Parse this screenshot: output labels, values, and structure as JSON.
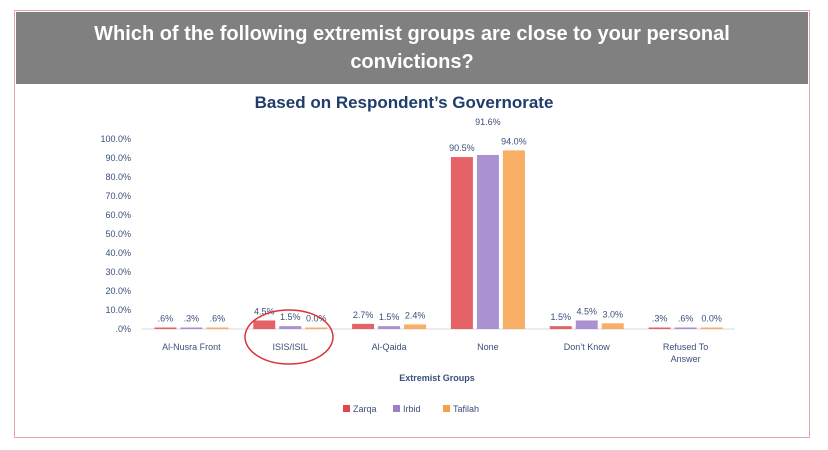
{
  "header": {
    "line1": "Which of the following extremist groups are close to your personal",
    "line2": "convictions?"
  },
  "chart_data": {
    "type": "bar",
    "title": "Based on Respondent’s Governorate",
    "xlabel": "Extremist Groups",
    "ylabel": "",
    "ylim": [
      0,
      100
    ],
    "yticks": [
      "100.0%",
      "90.0%",
      "80.0%",
      "70.0%",
      "60.0%",
      "50.0%",
      "40.0%",
      "30.0%",
      "20.0%",
      "10.0%",
      ".0%"
    ],
    "categories": [
      [
        "Al-Nusra Front"
      ],
      [
        "ISIS/ISIL"
      ],
      [
        "Al-Qaida"
      ],
      [
        "None"
      ],
      [
        "Don’t Know"
      ],
      [
        "Refused To",
        "Answer"
      ]
    ],
    "series": [
      {
        "name": "Zarqa",
        "color": "#e0474c",
        "values": [
          0.6,
          4.5,
          2.7,
          90.5,
          1.5,
          0.3
        ],
        "labels": [
          ".6%",
          "4.5%",
          "2.7%",
          "90.5%",
          "1.5%",
          ".3%"
        ]
      },
      {
        "name": "Irbid",
        "color": "#9b7fc9",
        "values": [
          0.3,
          1.5,
          1.5,
          91.6,
          4.5,
          0.6
        ],
        "labels": [
          ".3%",
          "1.5%",
          "1.5%",
          "91.6%",
          "4.5%",
          ".6%"
        ]
      },
      {
        "name": "Tafilah",
        "color": "#f7a04a",
        "values": [
          0.6,
          0.0,
          2.4,
          94.0,
          3.0,
          0.0
        ],
        "labels": [
          ".6%",
          "0.0%",
          "2.4%",
          "94.0%",
          "3.0%",
          "0.0%"
        ]
      }
    ],
    "grid": false,
    "legend_position": "bottom",
    "annotation": "red circle around ISIS/ISIL"
  }
}
